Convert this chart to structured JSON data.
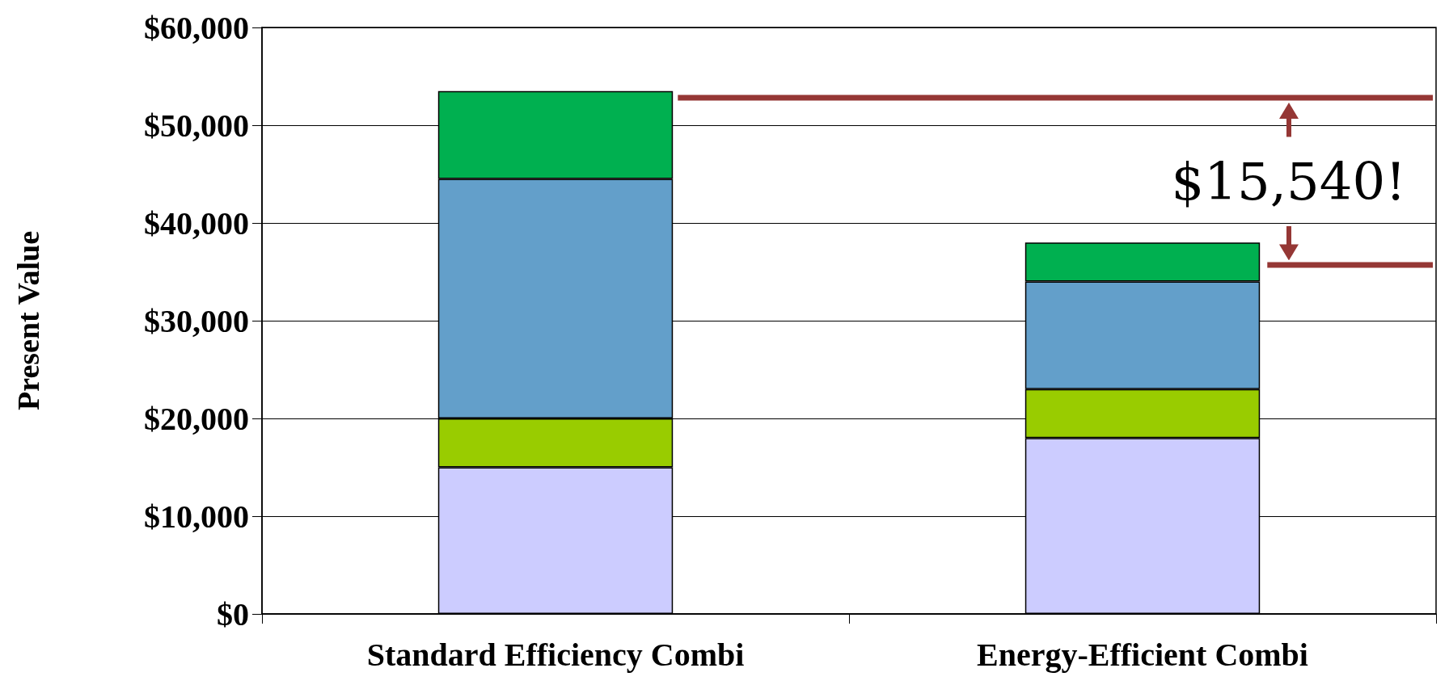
{
  "chart_data": {
    "type": "bar",
    "stacked": true,
    "ylabel": "Present Value",
    "categories": [
      "Standard Efficiency Combi",
      "Energy-Efficient Combi"
    ],
    "series": [
      {
        "color": "#ccccff",
        "values": [
          15000,
          18000
        ]
      },
      {
        "color": "#99cc00",
        "values": [
          5000,
          5000
        ]
      },
      {
        "color": "#639fca",
        "values": [
          24500,
          11000
        ]
      },
      {
        "color": "#00b050",
        "values": [
          9000,
          4000
        ]
      }
    ],
    "ylim": [
      0,
      60000
    ],
    "yticks": [
      {
        "value": 0,
        "label": "$0"
      },
      {
        "value": 10000,
        "label": "$10,000"
      },
      {
        "value": 20000,
        "label": "$20,000"
      },
      {
        "value": 30000,
        "label": "$30,000"
      },
      {
        "value": 40000,
        "label": "$40,000"
      },
      {
        "value": 50000,
        "label": "$50,000"
      },
      {
        "value": 60000,
        "label": "$60,000"
      }
    ],
    "grid": "y",
    "ref_lines": [
      {
        "axis": "y",
        "value": 52800,
        "color": "#953735"
      },
      {
        "axis": "y",
        "value": 35700,
        "color": "#953735"
      }
    ],
    "annotations": [
      "$15,540!"
    ]
  }
}
